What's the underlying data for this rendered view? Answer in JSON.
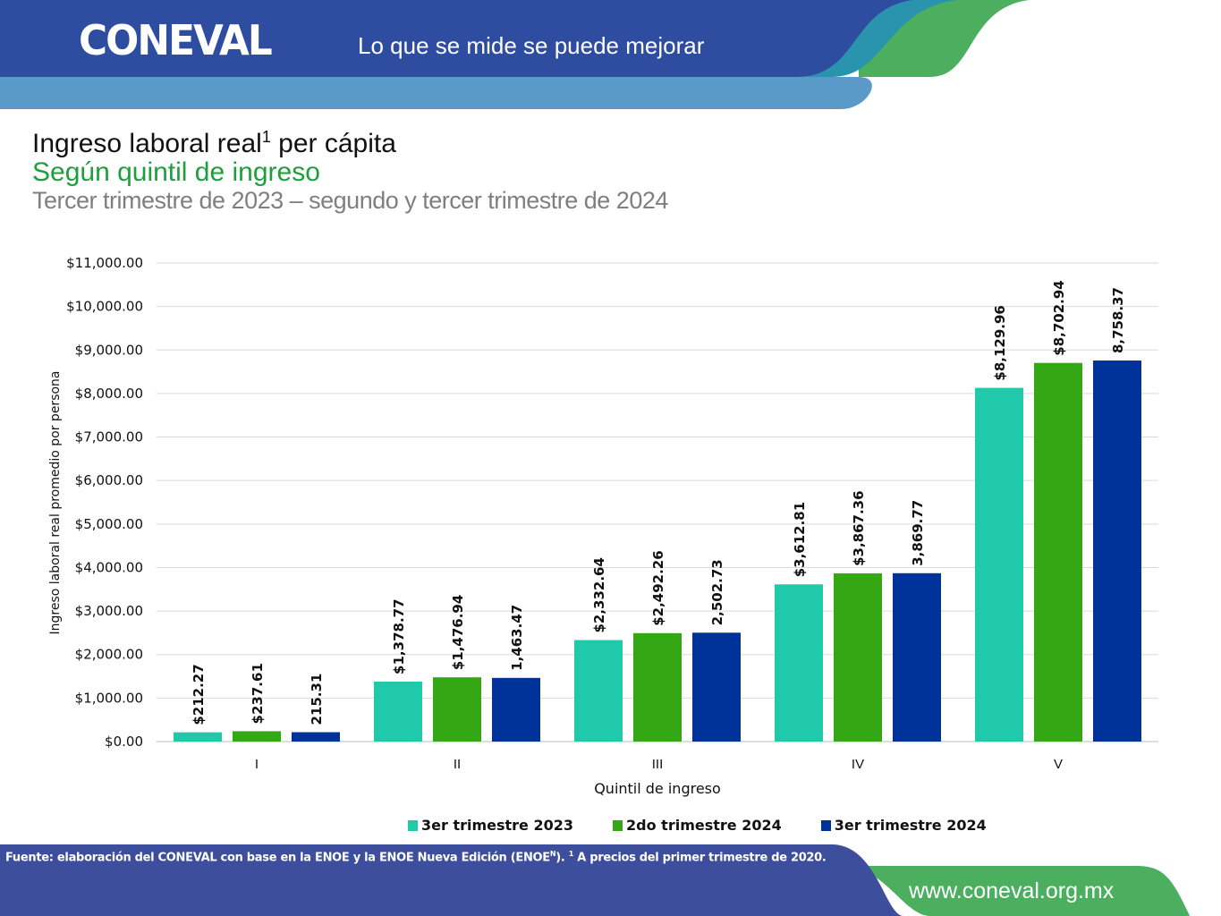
{
  "header": {
    "logo": "CONEVAL",
    "tagline": "Lo que se mide se puede mejorar"
  },
  "title": {
    "line1": "Ingreso laboral real",
    "sup": "1",
    "line1_end": " per cápita",
    "line2": "Según quintil de ingreso",
    "line3": "Tercer trimestre de 2023 – segundo y tercer trimestre de 2024"
  },
  "chart_data": {
    "type": "bar",
    "categories": [
      "I",
      "II",
      "III",
      "IV",
      "V"
    ],
    "xlabel": "Quintil de ingreso",
    "ylabel": "Ingreso laboral real promedio por persona",
    "ylim": [
      0,
      11000
    ],
    "yticks": [
      "$0.00",
      "$1,000.00",
      "$2,000.00",
      "$3,000.00",
      "$4,000.00",
      "$5,000.00",
      "$6,000.00",
      "$7,000.00",
      "$8,000.00",
      "$9,000.00",
      "$10,000.00",
      "$11,000.00"
    ],
    "grid": true,
    "legend_position": "bottom",
    "series": [
      {
        "name": "3er trimestre 2023",
        "color": "#20c9a9",
        "values": [
          212.27,
          1378.77,
          2332.64,
          3612.81,
          8129.96
        ],
        "labels": [
          "$212.27",
          "$1,378.77",
          "$2,332.64",
          "$3,612.81",
          "$8,129.96"
        ]
      },
      {
        "name": "2do trimestre 2024",
        "color": "#33a814",
        "values": [
          237.61,
          1476.94,
          2492.26,
          3867.36,
          8702.94
        ],
        "labels": [
          "$237.61",
          "$1,476.94",
          "$2,492.26",
          "$3,867.36",
          "$8,702.94"
        ]
      },
      {
        "name": "3er trimestre 2024",
        "color": "#003399",
        "values": [
          215.31,
          1463.47,
          2502.73,
          3869.77,
          8758.37
        ],
        "labels": [
          "215.31",
          "1,463.47",
          "2,502.73",
          "3,869.77",
          "8,758.37"
        ]
      }
    ]
  },
  "footer": {
    "source": "Fuente: elaboración del CONEVAL con base en la ENOE y la ENOE Nueva Edición (ENOE",
    "source_sup": "N",
    "source_mid": "). ",
    "note_sup": "1",
    "note": " A precios del primer trimestre de 2020.",
    "url": "www.coneval.org.mx"
  },
  "colors": {
    "header_blue": "#2f4da0",
    "light_blue": "#5a9ac8",
    "teal": "#2a93ad",
    "green": "#4caf60",
    "footer_blue": "#3d4f9c"
  }
}
